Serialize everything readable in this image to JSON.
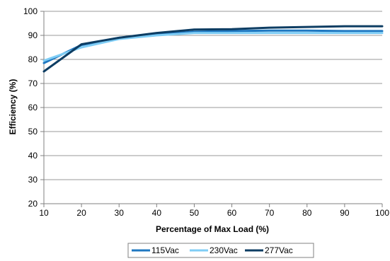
{
  "chart_data": {
    "type": "line",
    "xlabel": "Percentage of Max Load (%)",
    "ylabel": "Efficiency  (%)",
    "xlim": [
      10,
      100
    ],
    "ylim": [
      20,
      100
    ],
    "xticks": [
      10,
      20,
      30,
      40,
      50,
      60,
      70,
      80,
      90,
      100
    ],
    "yticks": [
      20,
      30,
      40,
      50,
      60,
      70,
      80,
      90,
      100
    ],
    "grid": "horizontal",
    "legend_position": "bottom",
    "x": [
      10,
      20,
      30,
      40,
      50,
      60,
      70,
      80,
      90,
      100
    ],
    "series": [
      {
        "name": "115Vac",
        "color": "#1f78c1",
        "values": [
          78.5,
          86.0,
          89.0,
          90.5,
          91.5,
          91.8,
          92.0,
          92.0,
          91.8,
          91.8
        ]
      },
      {
        "name": "230Vac",
        "color": "#7fcdf5",
        "values": [
          79.5,
          85.0,
          88.5,
          90.0,
          91.0,
          91.0,
          91.0,
          91.0,
          91.0,
          91.0
        ]
      },
      {
        "name": "277Vac",
        "color": "#0d3d63",
        "values": [
          75.0,
          86.3,
          89.0,
          91.0,
          92.4,
          92.6,
          93.2,
          93.5,
          93.8,
          93.8
        ]
      }
    ]
  }
}
